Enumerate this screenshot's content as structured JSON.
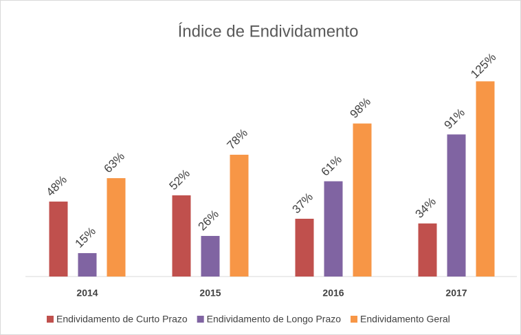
{
  "chart_data": {
    "type": "bar",
    "title": "Índice de Endividamento",
    "categories": [
      "2014",
      "2015",
      "2016",
      "2017"
    ],
    "series": [
      {
        "name": "Endividamento de Curto Prazo",
        "color": "#c0504d",
        "values": [
          48,
          52,
          37,
          34
        ],
        "value_labels": [
          "48%",
          "52%",
          "37%",
          "34%"
        ]
      },
      {
        "name": "Endividamento de Longo Prazo",
        "color": "#8064a2",
        "values": [
          15,
          26,
          61,
          91
        ],
        "value_labels": [
          "15%",
          "26%",
          "61%",
          "91%"
        ]
      },
      {
        "name": "Endividamento Geral",
        "color": "#f79646",
        "values": [
          63,
          78,
          98,
          125
        ],
        "value_labels": [
          "63%",
          "78%",
          "98%",
          "125%"
        ]
      }
    ],
    "legend": "bottom"
  }
}
